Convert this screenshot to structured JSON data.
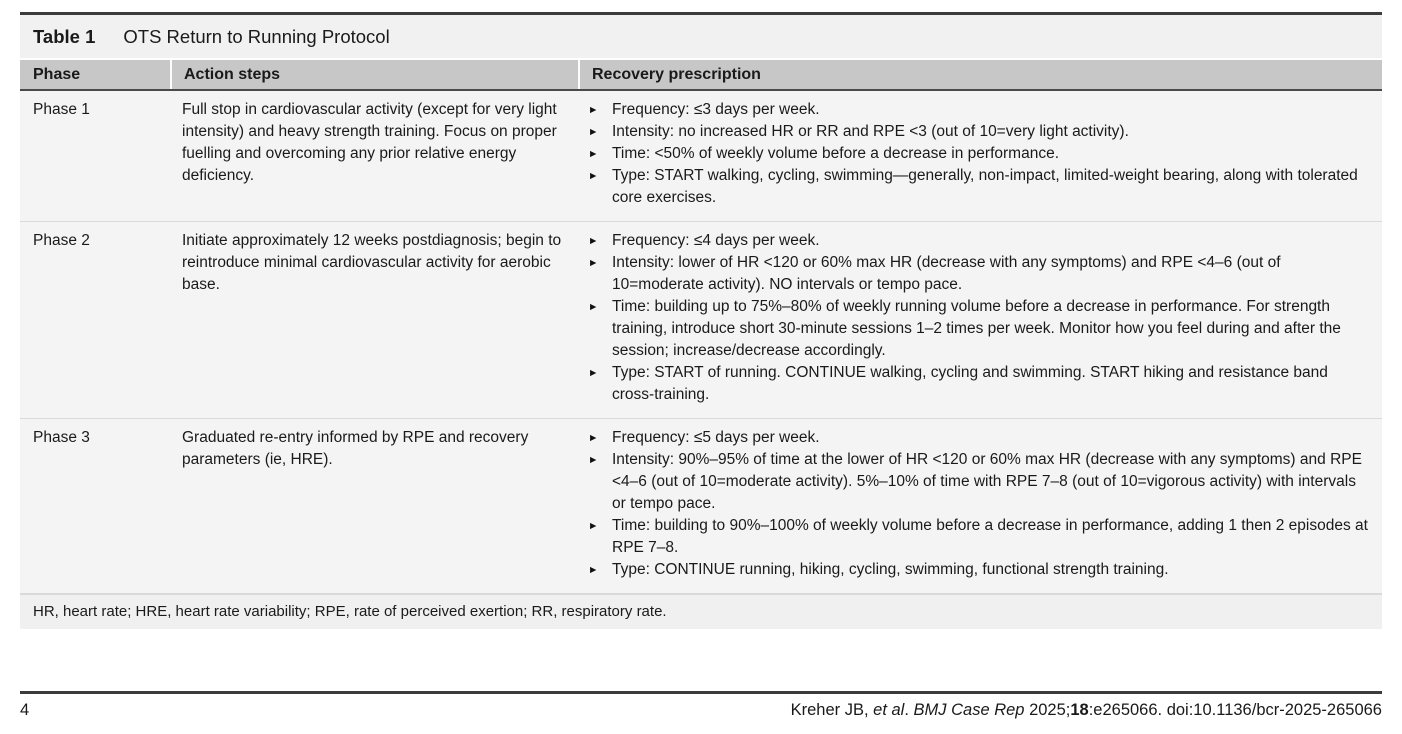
{
  "colors": {
    "page_bg": "#ffffff",
    "caption_bar_bg": "#f1f1f1",
    "header_row_bg": "#c7c7c7",
    "body_row_bg": "#f4f4f4",
    "footnote_bg": "#f0f0f0",
    "dark_rule": "#3c3c3c",
    "header_bottom_rule": "#4a4a4a",
    "row_separator": "#d9d9d9",
    "text": "#1a1a1a"
  },
  "icons": {
    "bullet": "►"
  },
  "table": {
    "caption_label": "Table 1",
    "caption_title": "OTS Return to Running Protocol",
    "columns": {
      "phase": "Phase",
      "action": "Action steps",
      "recovery": "Recovery prescription"
    },
    "rows": [
      {
        "phase": "Phase 1",
        "action": "Full stop in cardiovascular activity (except for very light intensity) and heavy strength training. Focus on proper fuelling and overcoming any prior relative energy deficiency.",
        "recovery": [
          "Frequency: ≤3 days per week.",
          "Intensity: no increased HR or RR and RPE <3 (out of 10=very light activity).",
          "Time: <50% of weekly volume before a decrease in performance.",
          "Type: START walking, cycling, swimming—generally, non-impact, limited-weight bearing, along with tolerated core exercises."
        ]
      },
      {
        "phase": "Phase 2",
        "action": "Initiate approximately 12 weeks postdiagnosis; begin to reintroduce minimal cardiovascular activity for aerobic base.",
        "recovery": [
          "Frequency: ≤4 days per week.",
          "Intensity: lower of HR <120 or 60% max HR (decrease with any symptoms) and RPE <4–6 (out of 10=moderate activity). NO intervals or tempo pace.",
          "Time: building up to 75%–80% of weekly running volume before a decrease in performance. For strength training, introduce short 30-minute sessions 1–2 times per week. Monitor how you feel during and after the session; increase/decrease accordingly.",
          "Type: START of running. CONTINUE walking, cycling and swimming. START hiking and resistance band cross-training."
        ]
      },
      {
        "phase": "Phase 3",
        "action": "Graduated re-entry informed by RPE and recovery parameters (ie, HRE).",
        "recovery": [
          "Frequency: ≤5 days per week.",
          "Intensity: 90%–95% of time at the lower of HR <120 or 60% max HR (decrease with any symptoms) and RPE <4–6 (out of 10=moderate activity). 5%–10% of time with RPE 7–8 (out of 10=vigorous activity) with intervals or tempo pace.",
          "Time: building to 90%–100% of weekly volume before a decrease in performance, adding 1 then 2 episodes at RPE 7–8.",
          "Type: CONTINUE running, hiking, cycling, swimming, functional strength training."
        ]
      }
    ],
    "footnote": "HR, heart rate; HRE, heart rate variability; RPE, rate of perceived exertion; RR, respiratory rate."
  },
  "footer": {
    "page_number": "4",
    "citation": {
      "authors": "Kreher JB, ",
      "etal": "et al",
      "sep1": ". ",
      "journal": "BMJ Case Rep",
      "year": " 2025;",
      "volume": "18",
      "rest": ":e265066. doi:10.1136/bcr-2025-265066"
    }
  }
}
